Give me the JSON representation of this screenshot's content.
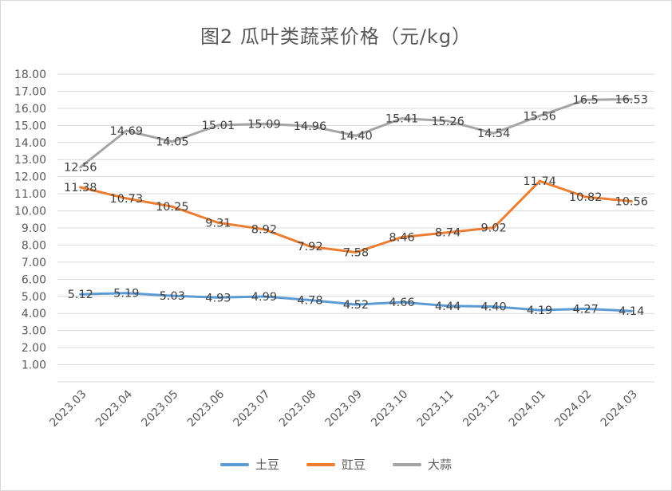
{
  "chart_data": {
    "type": "line",
    "title": "图2  瓜叶类蔬菜价格（元/kg）",
    "categories": [
      "2023.03",
      "2023.04",
      "2023.05",
      "2023.06",
      "2023.07",
      "2023.08",
      "2023.09",
      "2023.10",
      "2023.11",
      "2023.12",
      "2024.01",
      "2024.02",
      "2024.03"
    ],
    "yticks": [
      "1.00",
      "2.00",
      "3.00",
      "4.00",
      "5.00",
      "6.00",
      "7.00",
      "8.00",
      "9.00",
      "10.00",
      "11.00",
      "12.00",
      "13.00",
      "14.00",
      "15.00",
      "16.00",
      "17.00",
      "18.00"
    ],
    "ylim": [
      0,
      18
    ],
    "grid": true,
    "legend_position": "bottom",
    "series": [
      {
        "name": "土豆",
        "color": "#5b9bd5",
        "values": [
          5.12,
          5.19,
          5.03,
          4.93,
          4.99,
          4.78,
          4.52,
          4.66,
          4.44,
          4.4,
          4.19,
          4.27,
          4.14
        ],
        "labels": [
          "5.12",
          "5.19",
          "5.03",
          "4.93",
          "4.99",
          "4.78",
          "4.52",
          "4.66",
          "4.44",
          "4.40",
          "4.19",
          "4.27",
          "4.14"
        ]
      },
      {
        "name": "豇豆",
        "color": "#ed7d31",
        "values": [
          11.38,
          10.73,
          10.25,
          9.31,
          8.92,
          7.92,
          7.58,
          8.46,
          8.74,
          9.02,
          11.74,
          10.82,
          10.56
        ],
        "labels": [
          "11.38",
          "10.73",
          "10.25",
          "9.31",
          "8.92",
          "7.92",
          "7.58",
          "8.46",
          "8.74",
          "9.02",
          "11.74",
          "10.82",
          "10.56"
        ]
      },
      {
        "name": "大蒜",
        "color": "#a5a5a5",
        "values": [
          12.56,
          14.69,
          14.05,
          15.01,
          15.09,
          14.96,
          14.4,
          15.41,
          15.26,
          14.54,
          15.56,
          16.5,
          16.53
        ],
        "labels": [
          "12.56",
          "14.69",
          "14.05",
          "15.01",
          "15.09",
          "14.96",
          "14.40",
          "15.41",
          "15.26",
          "14.54",
          "15.56",
          "16.5",
          "16.53"
        ]
      }
    ]
  }
}
